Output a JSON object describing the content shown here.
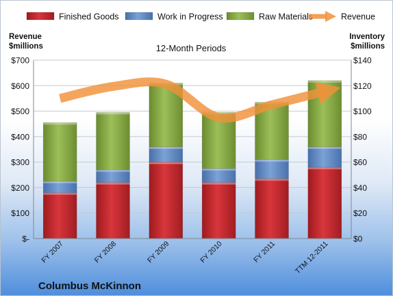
{
  "chart_data": {
    "type": "bar",
    "subtitle": "12-Month Periods",
    "company": "Columbus McKinnon",
    "categories": [
      "FY 2007",
      "FY 2008",
      "FY 2009",
      "FY 2010",
      "FY 2011",
      "TTM 12-2011"
    ],
    "left_axis": {
      "label_line1": "Revenue",
      "label_line2": "$millions",
      "range": [
        0,
        700
      ],
      "ticks": [
        0,
        100,
        200,
        300,
        400,
        500,
        600,
        700
      ],
      "tick_labels": [
        "$-",
        "$100",
        "$200",
        "$300",
        "$400",
        "$500",
        "$600",
        "$700"
      ]
    },
    "right_axis": {
      "label_line1": "Inventory",
      "label_line2": "$millions",
      "range": [
        0,
        140
      ],
      "ticks": [
        0,
        20,
        40,
        60,
        80,
        100,
        120,
        140
      ],
      "tick_labels": [
        "$0",
        "$20",
        "$40",
        "$60",
        "$80",
        "$100",
        "$120",
        "$140"
      ]
    },
    "series": [
      {
        "name": "Finished Goods",
        "kind": "stacked-bar",
        "axis": "right",
        "color": "#c0282d",
        "values": [
          36,
          44,
          60,
          44,
          47,
          56
        ]
      },
      {
        "name": "Work in Progress",
        "kind": "stacked-bar",
        "axis": "right",
        "color": "#5b86c2",
        "values": [
          9,
          10,
          12,
          11,
          15,
          16
        ]
      },
      {
        "name": "Raw Materials",
        "kind": "stacked-bar",
        "axis": "right",
        "color": "#83a73e",
        "values": [
          46,
          45,
          50,
          44,
          45,
          52
        ]
      },
      {
        "name": "Revenue",
        "kind": "line",
        "axis": "left",
        "color": "#f0913a",
        "values": [
          550,
          597,
          606,
          475,
          525,
          577
        ]
      }
    ],
    "legend_position": "top",
    "grid": true
  }
}
